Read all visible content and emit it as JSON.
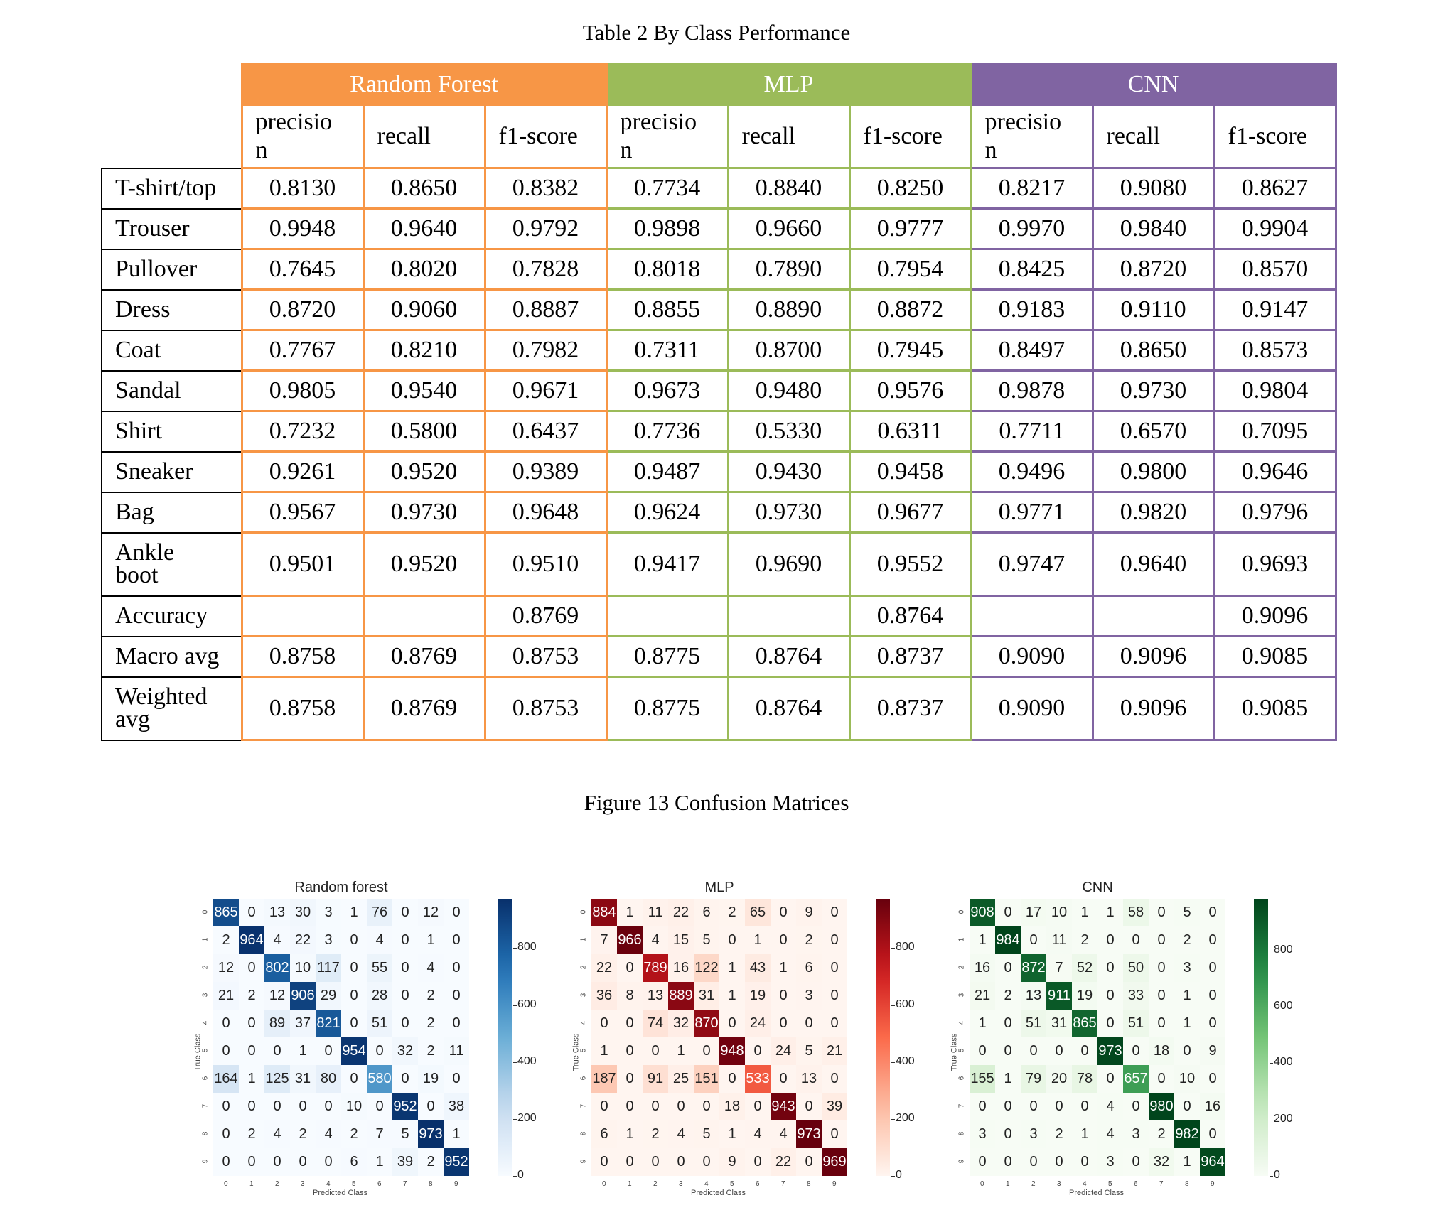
{
  "table_caption": "Table 2 By Class Performance",
  "figure_caption": "Figure 13 Confusion Matrices",
  "table": {
    "groups": [
      {
        "name": "Random Forest",
        "color": "#f79646"
      },
      {
        "name": "MLP",
        "color": "#9bbb59"
      },
      {
        "name": "CNN",
        "color": "#8064a2"
      }
    ],
    "metrics": [
      "precision",
      "recall",
      "f1-score"
    ],
    "rows": [
      {
        "label": "T-shirt/top",
        "values": [
          "0.8130",
          "0.8650",
          "0.8382",
          "0.7734",
          "0.8840",
          "0.8250",
          "0.8217",
          "0.9080",
          "0.8627"
        ]
      },
      {
        "label": "Trouser",
        "values": [
          "0.9948",
          "0.9640",
          "0.9792",
          "0.9898",
          "0.9660",
          "0.9777",
          "0.9970",
          "0.9840",
          "0.9904"
        ]
      },
      {
        "label": "Pullover",
        "values": [
          "0.7645",
          "0.8020",
          "0.7828",
          "0.8018",
          "0.7890",
          "0.7954",
          "0.8425",
          "0.8720",
          "0.8570"
        ]
      },
      {
        "label": "Dress",
        "values": [
          "0.8720",
          "0.9060",
          "0.8887",
          "0.8855",
          "0.8890",
          "0.8872",
          "0.9183",
          "0.9110",
          "0.9147"
        ]
      },
      {
        "label": "Coat",
        "values": [
          "0.7767",
          "0.8210",
          "0.7982",
          "0.7311",
          "0.8700",
          "0.7945",
          "0.8497",
          "0.8650",
          "0.8573"
        ]
      },
      {
        "label": "Sandal",
        "values": [
          "0.9805",
          "0.9540",
          "0.9671",
          "0.9673",
          "0.9480",
          "0.9576",
          "0.9878",
          "0.9730",
          "0.9804"
        ]
      },
      {
        "label": "Shirt",
        "values": [
          "0.7232",
          "0.5800",
          "0.6437",
          "0.7736",
          "0.5330",
          "0.6311",
          "0.7711",
          "0.6570",
          "0.7095"
        ]
      },
      {
        "label": "Sneaker",
        "values": [
          "0.9261",
          "0.9520",
          "0.9389",
          "0.9487",
          "0.9430",
          "0.9458",
          "0.9496",
          "0.9800",
          "0.9646"
        ]
      },
      {
        "label": "Bag",
        "values": [
          "0.9567",
          "0.9730",
          "0.9648",
          "0.9624",
          "0.9730",
          "0.9677",
          "0.9771",
          "0.9820",
          "0.9796"
        ]
      },
      {
        "label": "Ankle boot",
        "values": [
          "0.9501",
          "0.9520",
          "0.9510",
          "0.9417",
          "0.9690",
          "0.9552",
          "0.9747",
          "0.9640",
          "0.9693"
        ]
      },
      {
        "label": "Accuracy",
        "values": [
          "",
          "",
          "0.8769",
          "",
          "",
          "0.8764",
          "",
          "",
          "0.9096"
        ]
      },
      {
        "label": "Macro avg",
        "values": [
          "0.8758",
          "0.8769",
          "0.8753",
          "0.8775",
          "0.8764",
          "0.8737",
          "0.9090",
          "0.9096",
          "0.9085"
        ]
      },
      {
        "label": "Weighted avg",
        "values": [
          "0.8758",
          "0.8769",
          "0.8753",
          "0.8775",
          "0.8764",
          "0.8737",
          "0.9090",
          "0.9096",
          "0.9085"
        ]
      }
    ]
  },
  "chart_data": [
    {
      "type": "heatmap",
      "title": "Random forest",
      "xlabel": "Predicted Class",
      "ylabel": "True Class",
      "colormap": "Blues",
      "colorbar_ticks": [
        0,
        200,
        400,
        600,
        800
      ],
      "x_ticks": [
        "0",
        "1",
        "2",
        "3",
        "4",
        "5",
        "6",
        "7",
        "8",
        "9"
      ],
      "y_ticks": [
        "0",
        "1",
        "2",
        "3",
        "4",
        "5",
        "6",
        "7",
        "8",
        "9"
      ],
      "values": [
        [
          865,
          0,
          13,
          30,
          3,
          1,
          76,
          0,
          12,
          0
        ],
        [
          2,
          964,
          4,
          22,
          3,
          0,
          4,
          0,
          1,
          0
        ],
        [
          12,
          0,
          802,
          10,
          117,
          0,
          55,
          0,
          4,
          0
        ],
        [
          21,
          2,
          12,
          906,
          29,
          0,
          28,
          0,
          2,
          0
        ],
        [
          0,
          0,
          89,
          37,
          821,
          0,
          51,
          0,
          2,
          0
        ],
        [
          0,
          0,
          0,
          1,
          0,
          954,
          0,
          32,
          2,
          11
        ],
        [
          164,
          1,
          125,
          31,
          80,
          0,
          580,
          0,
          19,
          0
        ],
        [
          0,
          0,
          0,
          0,
          0,
          10,
          0,
          952,
          0,
          38
        ],
        [
          0,
          2,
          4,
          2,
          4,
          2,
          7,
          5,
          973,
          1
        ],
        [
          0,
          0,
          0,
          0,
          0,
          6,
          1,
          39,
          2,
          952
        ]
      ]
    },
    {
      "type": "heatmap",
      "title": "MLP",
      "xlabel": "Predicted Class",
      "ylabel": "True Class",
      "colormap": "Reds",
      "colorbar_ticks": [
        0,
        200,
        400,
        600,
        800
      ],
      "x_ticks": [
        "0",
        "1",
        "2",
        "3",
        "4",
        "5",
        "6",
        "7",
        "8",
        "9"
      ],
      "y_ticks": [
        "0",
        "1",
        "2",
        "3",
        "4",
        "5",
        "6",
        "7",
        "8",
        "9"
      ],
      "values": [
        [
          884,
          1,
          11,
          22,
          6,
          2,
          65,
          0,
          9,
          0
        ],
        [
          7,
          966,
          4,
          15,
          5,
          0,
          1,
          0,
          2,
          0
        ],
        [
          22,
          0,
          789,
          16,
          122,
          1,
          43,
          1,
          6,
          0
        ],
        [
          36,
          8,
          13,
          889,
          31,
          1,
          19,
          0,
          3,
          0
        ],
        [
          0,
          0,
          74,
          32,
          870,
          0,
          24,
          0,
          0,
          0
        ],
        [
          1,
          0,
          0,
          1,
          0,
          948,
          0,
          24,
          5,
          21
        ],
        [
          187,
          0,
          91,
          25,
          151,
          0,
          533,
          0,
          13,
          0
        ],
        [
          0,
          0,
          0,
          0,
          0,
          18,
          0,
          943,
          0,
          39
        ],
        [
          6,
          1,
          2,
          4,
          5,
          1,
          4,
          4,
          973,
          0
        ],
        [
          0,
          0,
          0,
          0,
          0,
          9,
          0,
          22,
          0,
          969
        ]
      ]
    },
    {
      "type": "heatmap",
      "title": "CNN",
      "xlabel": "Predicted Class",
      "ylabel": "True Class",
      "colormap": "Greens",
      "colorbar_ticks": [
        0,
        200,
        400,
        600,
        800
      ],
      "x_ticks": [
        "0",
        "1",
        "2",
        "3",
        "4",
        "5",
        "6",
        "7",
        "8",
        "9"
      ],
      "y_ticks": [
        "0",
        "1",
        "2",
        "3",
        "4",
        "5",
        "6",
        "7",
        "8",
        "9"
      ],
      "values": [
        [
          908,
          0,
          17,
          10,
          1,
          1,
          58,
          0,
          5,
          0
        ],
        [
          1,
          984,
          0,
          11,
          2,
          0,
          0,
          0,
          2,
          0
        ],
        [
          16,
          0,
          872,
          7,
          52,
          0,
          50,
          0,
          3,
          0
        ],
        [
          21,
          2,
          13,
          911,
          19,
          0,
          33,
          0,
          1,
          0
        ],
        [
          1,
          0,
          51,
          31,
          865,
          0,
          51,
          0,
          1,
          0
        ],
        [
          0,
          0,
          0,
          0,
          0,
          973,
          0,
          18,
          0,
          9
        ],
        [
          155,
          1,
          79,
          20,
          78,
          0,
          657,
          0,
          10,
          0
        ],
        [
          0,
          0,
          0,
          0,
          0,
          4,
          0,
          980,
          0,
          16
        ],
        [
          3,
          0,
          3,
          2,
          1,
          4,
          3,
          2,
          982,
          0
        ],
        [
          0,
          0,
          0,
          0,
          0,
          3,
          0,
          32,
          1,
          964
        ]
      ]
    }
  ]
}
